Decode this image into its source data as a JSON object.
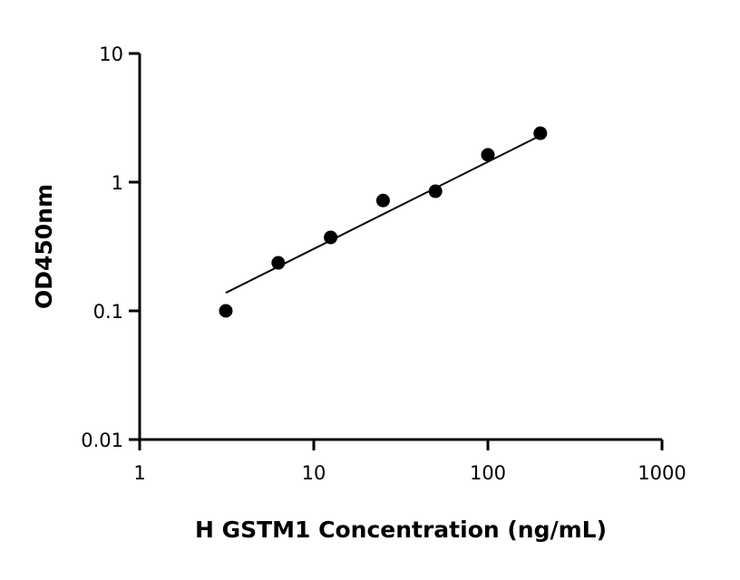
{
  "chart_data": {
    "type": "scatter",
    "title": "",
    "xlabel": "H GSTM1 Concentration (ng/mL)",
    "ylabel": "OD450nm",
    "xscale": "log",
    "yscale": "log",
    "xlim": [
      1,
      1000
    ],
    "ylim": [
      0.01,
      10
    ],
    "xticks": [
      "1",
      "10",
      "100",
      "1000"
    ],
    "yticks": [
      "0.01",
      "0.1",
      "1",
      "10"
    ],
    "grid": false,
    "legend": "none",
    "points": {
      "x": [
        3.125,
        6.25,
        12.5,
        25,
        50,
        100,
        200
      ],
      "y": [
        0.1,
        0.236,
        0.372,
        0.72,
        0.85,
        1.63,
        2.4
      ]
    },
    "fit_line": {
      "x": [
        3.125,
        200
      ],
      "y": [
        0.138,
        2.3
      ]
    },
    "colors": {
      "points": "#000000",
      "line": "#000000"
    }
  }
}
